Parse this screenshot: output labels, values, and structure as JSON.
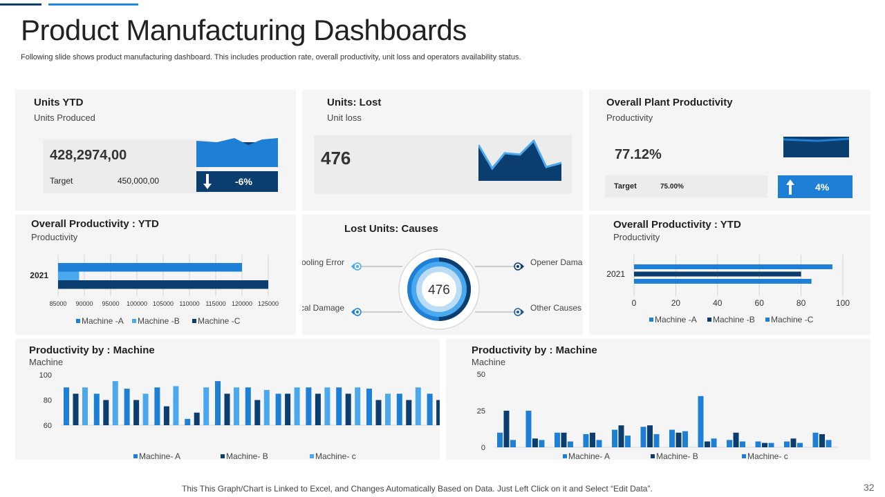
{
  "header": {
    "title": "Product Manufacturing Dashboards",
    "subtitle": "Following slide shows product manufacturing dashboard. This includes production rate, overall productivity, unit loss and operators availability status."
  },
  "colors": {
    "dark": "#0b3d6e",
    "mid": "#1e7fd6",
    "light": "#4aa8ee",
    "panel": "#f5f5f5"
  },
  "units_ytd": {
    "title": "Units YTD",
    "subtitle": "Units Produced",
    "value": "428,2974,00",
    "target_label": "Target",
    "target_value": "450,000,00",
    "change": "-6%",
    "change_icon": "arrow-down-icon"
  },
  "units_lost": {
    "title": "Units: Lost",
    "subtitle": "Unit loss",
    "value": "476"
  },
  "plant_productivity": {
    "title": "Overall Plant Productivity",
    "subtitle": "Productivity",
    "value": "77.12%",
    "target_label": "Target",
    "target_value": "75.00%",
    "change": "4%",
    "change_icon": "arrow-up-icon"
  },
  "lost_causes": {
    "title": "Lost Units: Causes",
    "center_value": "476",
    "causes": [
      "Tooling Error",
      "Physical Damage",
      "Opener Damage",
      "Other Causes"
    ]
  },
  "chart_data": [
    {
      "id": "productivity-ytd-left",
      "type": "bar",
      "orientation": "horizontal",
      "title": "Overall Productivity : YTD",
      "subtitle": "Productivity",
      "categories": [
        "2021"
      ],
      "series": [
        {
          "name": "Machine -A",
          "values": [
            120000
          ]
        },
        {
          "name": "Machine -B",
          "values": [
            89000
          ]
        },
        {
          "name": "Machine -C",
          "values": [
            125000
          ]
        }
      ],
      "xlim": [
        85000,
        125000
      ],
      "ticks": [
        "85000",
        "90000",
        "95000",
        "100000",
        "105000",
        "110000",
        "115000",
        "120000",
        "125000"
      ]
    },
    {
      "id": "productivity-ytd-right",
      "type": "bar",
      "orientation": "horizontal",
      "title": "Overall Productivity : YTD",
      "subtitle": "Productivity",
      "categories": [
        "2021"
      ],
      "series": [
        {
          "name": "Machine -A",
          "values": [
            95
          ]
        },
        {
          "name": "Machine -B",
          "values": [
            80
          ]
        },
        {
          "name": "Machine -C",
          "values": [
            85
          ]
        }
      ],
      "xlim": [
        0,
        100
      ],
      "ticks": [
        "0",
        "20",
        "40",
        "60",
        "80",
        "100"
      ]
    },
    {
      "id": "productivity-machine-left",
      "type": "bar",
      "title": "Productivity by : Machine",
      "subtitle": "Machine",
      "ylim": [
        60,
        100
      ],
      "ticks": [
        "100",
        "80",
        "60"
      ],
      "series": [
        {
          "name": "Machine- A",
          "values": [
            90,
            85,
            89,
            90,
            65,
            95,
            90,
            85,
            90,
            90,
            89,
            85,
            85
          ]
        },
        {
          "name": "Machine- B",
          "values": [
            85,
            80,
            80,
            75,
            70,
            85,
            80,
            85,
            85,
            85,
            80,
            80,
            80
          ]
        },
        {
          "name": "Machine- c",
          "values": [
            90,
            95,
            85,
            91,
            90,
            90,
            88,
            90,
            90,
            90,
            85,
            90,
            90
          ]
        }
      ]
    },
    {
      "id": "productivity-machine-right",
      "type": "bar",
      "title": "Productivity by : Machine",
      "subtitle": "Machine",
      "ylim": [
        0,
        50
      ],
      "ticks": [
        "50",
        "25",
        "0"
      ],
      "series": [
        {
          "name": "Machine- A",
          "values": [
            10,
            25,
            10,
            9,
            12,
            14,
            12,
            35,
            5,
            4,
            4,
            10
          ]
        },
        {
          "name": "Machine- B",
          "values": [
            25,
            6,
            10,
            10,
            15,
            15,
            10,
            4,
            10,
            3,
            6,
            9
          ]
        },
        {
          "name": "Machine- c",
          "values": [
            5,
            5,
            4,
            5,
            8,
            9,
            11,
            6,
            4,
            3,
            3,
            5
          ]
        }
      ]
    }
  ],
  "footer": {
    "note": "This This Graph/Chart is Linked to Excel, and Changes Automatically Based on Data. Just Left Click on it and Select “Edit Data”.",
    "page": "32"
  }
}
